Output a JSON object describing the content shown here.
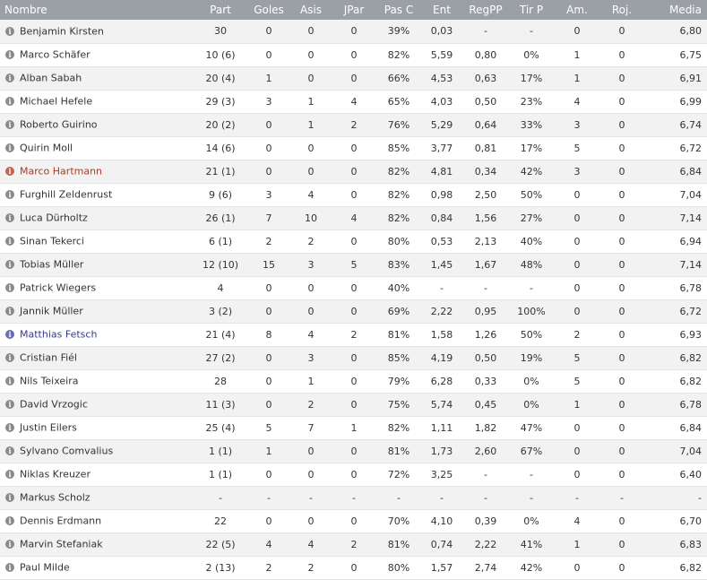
{
  "columns": [
    "Nombre",
    "Part",
    "Goles",
    "Asis",
    "JPar",
    "Pas C",
    "Ent",
    "RegPP",
    "Tir P",
    "Am.",
    "Roj.",
    "Media"
  ],
  "colors": {
    "header_bg": "#9aa0a6",
    "name_red": "#b03a1e",
    "name_blue": "#333a8f",
    "icon_red": "#c0644f",
    "icon_blue": "#6a6fae"
  },
  "rows": [
    {
      "name": "Benjamin Kirsten",
      "color": "",
      "part": "30",
      "goles": "0",
      "asis": "0",
      "jpar": "0",
      "pasc": "39%",
      "ent": "0,03",
      "regpp": "-",
      "tirp": "-",
      "am": "0",
      "roj": "0",
      "media": "6,80"
    },
    {
      "name": "Marco Schäfer",
      "color": "",
      "part": "10 (6)",
      "goles": "0",
      "asis": "0",
      "jpar": "0",
      "pasc": "82%",
      "ent": "5,59",
      "regpp": "0,80",
      "tirp": "0%",
      "am": "1",
      "roj": "0",
      "media": "6,75"
    },
    {
      "name": "Alban Sabah",
      "color": "",
      "part": "20 (4)",
      "goles": "1",
      "asis": "0",
      "jpar": "0",
      "pasc": "66%",
      "ent": "4,53",
      "regpp": "0,63",
      "tirp": "17%",
      "am": "1",
      "roj": "0",
      "media": "6,91"
    },
    {
      "name": "Michael Hefele",
      "color": "",
      "part": "29 (3)",
      "goles": "3",
      "asis": "1",
      "jpar": "4",
      "pasc": "65%",
      "ent": "4,03",
      "regpp": "0,50",
      "tirp": "23%",
      "am": "4",
      "roj": "0",
      "media": "6,99"
    },
    {
      "name": "Roberto Guirino",
      "color": "",
      "part": "20 (2)",
      "goles": "0",
      "asis": "1",
      "jpar": "2",
      "pasc": "76%",
      "ent": "5,29",
      "regpp": "0,64",
      "tirp": "33%",
      "am": "3",
      "roj": "0",
      "media": "6,74"
    },
    {
      "name": "Quirin Moll",
      "color": "",
      "part": "14 (6)",
      "goles": "0",
      "asis": "0",
      "jpar": "0",
      "pasc": "85%",
      "ent": "3,77",
      "regpp": "0,81",
      "tirp": "17%",
      "am": "5",
      "roj": "0",
      "media": "6,72"
    },
    {
      "name": "Marco Hartmann",
      "color": "red",
      "part": "21 (1)",
      "goles": "0",
      "asis": "0",
      "jpar": "0",
      "pasc": "82%",
      "ent": "4,81",
      "regpp": "0,34",
      "tirp": "42%",
      "am": "3",
      "roj": "0",
      "media": "6,84"
    },
    {
      "name": "Furghill Zeldenrust",
      "color": "",
      "part": "9 (6)",
      "goles": "3",
      "asis": "4",
      "jpar": "0",
      "pasc": "82%",
      "ent": "0,98",
      "regpp": "2,50",
      "tirp": "50%",
      "am": "0",
      "roj": "0",
      "media": "7,04"
    },
    {
      "name": "Luca Dürholtz",
      "color": "",
      "part": "26 (1)",
      "goles": "7",
      "asis": "10",
      "jpar": "4",
      "pasc": "82%",
      "ent": "0,84",
      "regpp": "1,56",
      "tirp": "27%",
      "am": "0",
      "roj": "0",
      "media": "7,14"
    },
    {
      "name": "Sinan Tekerci",
      "color": "",
      "part": "6 (1)",
      "goles": "2",
      "asis": "2",
      "jpar": "0",
      "pasc": "80%",
      "ent": "0,53",
      "regpp": "2,13",
      "tirp": "40%",
      "am": "0",
      "roj": "0",
      "media": "6,94"
    },
    {
      "name": "Tobias Müller",
      "color": "",
      "part": "12 (10)",
      "goles": "15",
      "asis": "3",
      "jpar": "5",
      "pasc": "83%",
      "ent": "1,45",
      "regpp": "1,67",
      "tirp": "48%",
      "am": "0",
      "roj": "0",
      "media": "7,14"
    },
    {
      "name": "Patrick Wiegers",
      "color": "",
      "part": "4",
      "goles": "0",
      "asis": "0",
      "jpar": "0",
      "pasc": "40%",
      "ent": "-",
      "regpp": "-",
      "tirp": "-",
      "am": "0",
      "roj": "0",
      "media": "6,78"
    },
    {
      "name": "Jannik Müller",
      "color": "",
      "part": "3 (2)",
      "goles": "0",
      "asis": "0",
      "jpar": "0",
      "pasc": "69%",
      "ent": "2,22",
      "regpp": "0,95",
      "tirp": "100%",
      "am": "0",
      "roj": "0",
      "media": "6,72"
    },
    {
      "name": "Matthias Fetsch",
      "color": "blue",
      "part": "21 (4)",
      "goles": "8",
      "asis": "4",
      "jpar": "2",
      "pasc": "81%",
      "ent": "1,58",
      "regpp": "1,26",
      "tirp": "50%",
      "am": "2",
      "roj": "0",
      "media": "6,93"
    },
    {
      "name": "Cristian Fiél",
      "color": "",
      "part": "27 (2)",
      "goles": "0",
      "asis": "3",
      "jpar": "0",
      "pasc": "85%",
      "ent": "4,19",
      "regpp": "0,50",
      "tirp": "19%",
      "am": "5",
      "roj": "0",
      "media": "6,82"
    },
    {
      "name": "Nils Teixeira",
      "color": "",
      "part": "28",
      "goles": "0",
      "asis": "1",
      "jpar": "0",
      "pasc": "79%",
      "ent": "6,28",
      "regpp": "0,33",
      "tirp": "0%",
      "am": "5",
      "roj": "0",
      "media": "6,82"
    },
    {
      "name": "David Vrzogic",
      "color": "",
      "part": "11 (3)",
      "goles": "0",
      "asis": "2",
      "jpar": "0",
      "pasc": "75%",
      "ent": "5,74",
      "regpp": "0,45",
      "tirp": "0%",
      "am": "1",
      "roj": "0",
      "media": "6,78"
    },
    {
      "name": "Justin Eilers",
      "color": "",
      "part": "25 (4)",
      "goles": "5",
      "asis": "7",
      "jpar": "1",
      "pasc": "82%",
      "ent": "1,11",
      "regpp": "1,82",
      "tirp": "47%",
      "am": "0",
      "roj": "0",
      "media": "6,84"
    },
    {
      "name": "Sylvano Comvalius",
      "color": "",
      "part": "1 (1)",
      "goles": "1",
      "asis": "0",
      "jpar": "0",
      "pasc": "81%",
      "ent": "1,73",
      "regpp": "2,60",
      "tirp": "67%",
      "am": "0",
      "roj": "0",
      "media": "7,04"
    },
    {
      "name": "Niklas Kreuzer",
      "color": "",
      "part": "1 (1)",
      "goles": "0",
      "asis": "0",
      "jpar": "0",
      "pasc": "72%",
      "ent": "3,25",
      "regpp": "-",
      "tirp": "-",
      "am": "0",
      "roj": "0",
      "media": "6,40"
    },
    {
      "name": "Markus Scholz",
      "color": "",
      "part": "-",
      "goles": "-",
      "asis": "-",
      "jpar": "-",
      "pasc": "-",
      "ent": "-",
      "regpp": "-",
      "tirp": "-",
      "am": "-",
      "roj": "-",
      "media": "-"
    },
    {
      "name": "Dennis Erdmann",
      "color": "",
      "part": "22",
      "goles": "0",
      "asis": "0",
      "jpar": "0",
      "pasc": "70%",
      "ent": "4,10",
      "regpp": "0,39",
      "tirp": "0%",
      "am": "4",
      "roj": "0",
      "media": "6,70"
    },
    {
      "name": "Marvin Stefaniak",
      "color": "",
      "part": "22 (5)",
      "goles": "4",
      "asis": "4",
      "jpar": "2",
      "pasc": "81%",
      "ent": "0,74",
      "regpp": "2,22",
      "tirp": "41%",
      "am": "1",
      "roj": "0",
      "media": "6,83"
    },
    {
      "name": "Paul Milde",
      "color": "",
      "part": "2 (13)",
      "goles": "2",
      "asis": "2",
      "jpar": "0",
      "pasc": "80%",
      "ent": "1,57",
      "regpp": "2,74",
      "tirp": "42%",
      "am": "0",
      "roj": "0",
      "media": "6,82"
    }
  ]
}
